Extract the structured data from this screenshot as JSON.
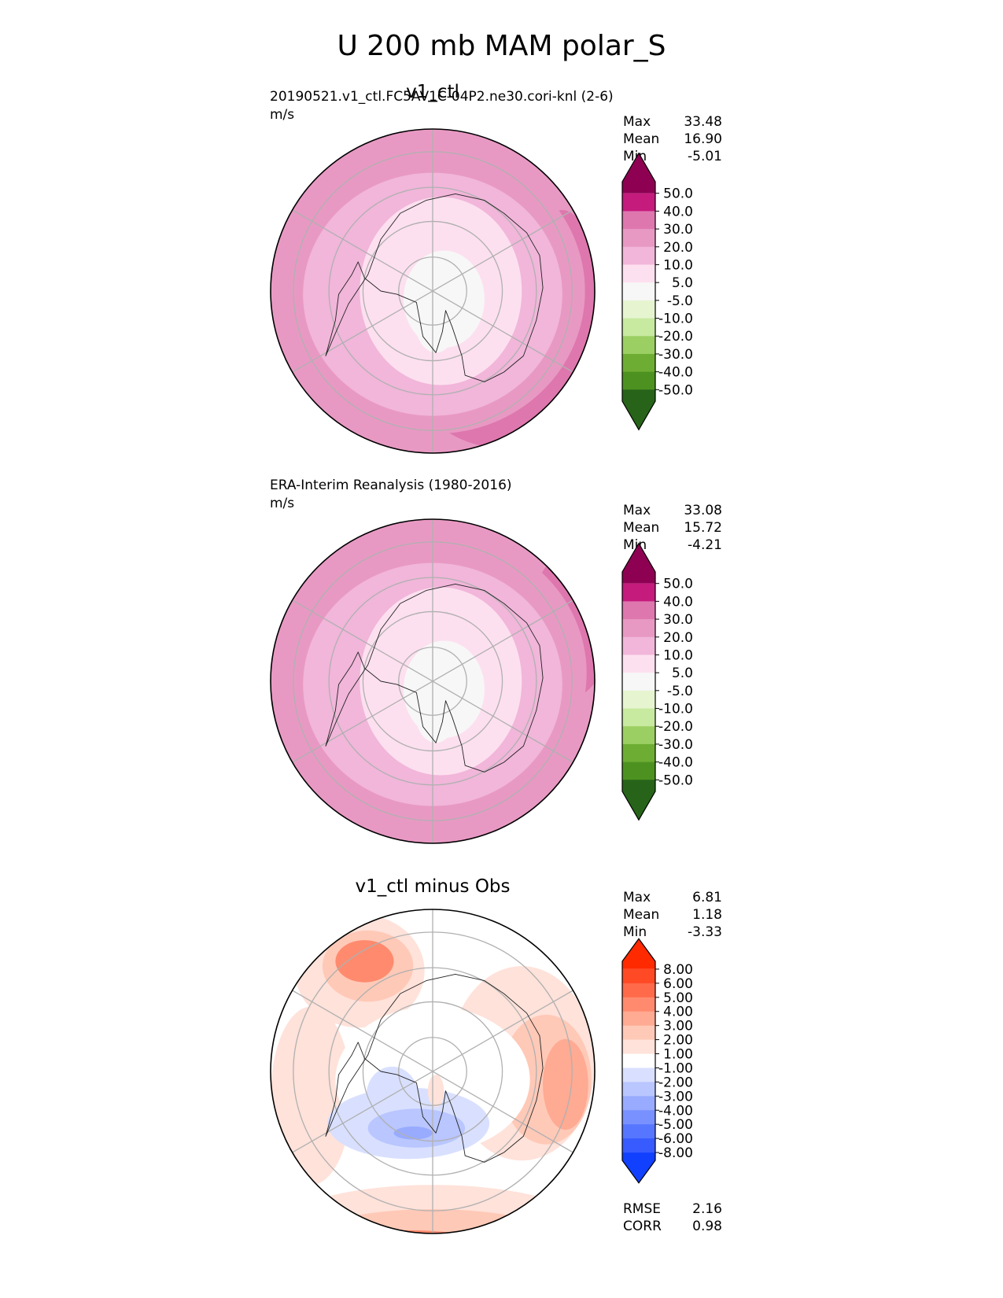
{
  "figure": {
    "title": "U 200 mb MAM polar_S"
  },
  "panels": [
    {
      "id": "test",
      "title": "v1_ctl",
      "run_label": "20190521.v1_ctl.FC5AV1C-04P2.ne30.cori-knl (2-6)",
      "units": "m/s",
      "stats": [
        {
          "label": "Max",
          "value": "33.48"
        },
        {
          "label": "Mean",
          "value": "16.90"
        },
        {
          "label": "Min",
          "value": "-5.01"
        }
      ]
    },
    {
      "id": "ref",
      "title": "",
      "run_label": "ERA-Interim Reanalysis (1980-2016)",
      "units": "m/s",
      "stats": [
        {
          "label": "Max",
          "value": "33.08"
        },
        {
          "label": "Mean",
          "value": "15.72"
        },
        {
          "label": "Min",
          "value": "-4.21"
        }
      ]
    },
    {
      "id": "diff",
      "title": "v1_ctl minus Obs",
      "run_label": "",
      "units": "",
      "stats": [
        {
          "label": "Max",
          "value": "6.81"
        },
        {
          "label": "Mean",
          "value": "1.18"
        },
        {
          "label": "Min",
          "value": "-3.33"
        }
      ],
      "metrics": [
        {
          "label": "RMSE",
          "value": "2.16"
        },
        {
          "label": "CORR",
          "value": "0.98"
        }
      ]
    }
  ],
  "chart_data": [
    {
      "type": "heatmap",
      "projection": "south polar stereographic",
      "title": "v1_ctl",
      "colorbar": {
        "ticks": [
          "50.0",
          "40.0",
          "30.0",
          "20.0",
          "10.0",
          "5.0",
          "-5.0",
          "-10.0",
          "-20.0",
          "-30.0",
          "-40.0",
          "-50.0"
        ],
        "colors": [
          "#8e0152",
          "#c51b7d",
          "#de77ae",
          "#e899c3",
          "#f1b6da",
          "#fde0ef",
          "#f7f7f7",
          "#e6f5d0",
          "#c7e9a0",
          "#9ccf63",
          "#6ead34",
          "#4d9221",
          "#276419"
        ],
        "extend": "both"
      },
      "contour_levels": [
        {
          "level": "5.0",
          "color": "#f7f7f7"
        },
        {
          "level": "10.0",
          "color": "#fde0ef"
        },
        {
          "level": "20.0",
          "color": "#f1b6da"
        },
        {
          "level": "30.0",
          "color": "#e899c3"
        },
        {
          "level": "40.0",
          "color": "#de77ae"
        }
      ]
    },
    {
      "type": "heatmap",
      "projection": "south polar stereographic",
      "title": "ERA-Interim Reanalysis (1980-2016)",
      "colorbar": {
        "ticks": [
          "50.0",
          "40.0",
          "30.0",
          "20.0",
          "10.0",
          "5.0",
          "-5.0",
          "-10.0",
          "-20.0",
          "-30.0",
          "-40.0",
          "-50.0"
        ],
        "colors": [
          "#8e0152",
          "#c51b7d",
          "#de77ae",
          "#e899c3",
          "#f1b6da",
          "#fde0ef",
          "#f7f7f7",
          "#e6f5d0",
          "#c7e9a0",
          "#9ccf63",
          "#6ead34",
          "#4d9221",
          "#276419"
        ],
        "extend": "both"
      },
      "contour_levels": [
        {
          "level": "5.0",
          "color": "#f7f7f7"
        },
        {
          "level": "10.0",
          "color": "#fde0ef"
        },
        {
          "level": "20.0",
          "color": "#f1b6da"
        },
        {
          "level": "30.0",
          "color": "#e899c3"
        },
        {
          "level": "40.0",
          "color": "#de77ae"
        }
      ]
    },
    {
      "type": "heatmap",
      "projection": "south polar stereographic",
      "title": "v1_ctl minus Obs",
      "colorbar": {
        "ticks": [
          "8.00",
          "6.00",
          "5.00",
          "4.00",
          "3.00",
          "2.00",
          "1.00",
          "-1.00",
          "-2.00",
          "-3.00",
          "-4.00",
          "-5.00",
          "-6.00",
          "-8.00"
        ],
        "colors": [
          "#ff2a00",
          "#ff4a25",
          "#ff6a4a",
          "#ff8a6e",
          "#ffaa93",
          "#ffc9b7",
          "#ffe2da",
          "#ffffff",
          "#d9e0ff",
          "#b9c6ff",
          "#98abff",
          "#7891ff",
          "#5776ff",
          "#375bff",
          "#1240ff"
        ],
        "extend": "both"
      }
    }
  ]
}
